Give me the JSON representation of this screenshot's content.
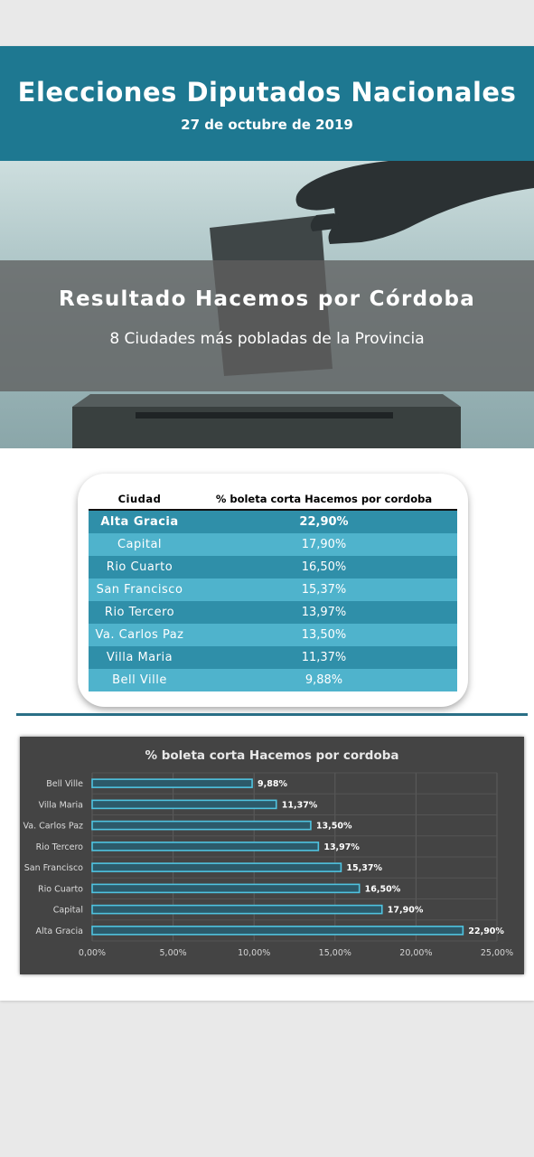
{
  "header": {
    "title": "Elecciones Diputados Nacionales",
    "date": "27 de octubre de 2019"
  },
  "banner": {
    "title": "Resultado Hacemos por Córdoba",
    "subtitle": "8 Ciudades más pobladas de la Provincia"
  },
  "table": {
    "columns": [
      "Ciudad",
      "% boleta corta Hacemos por cordoba"
    ],
    "rows": [
      {
        "city": "Alta Gracia",
        "value": "22,90%"
      },
      {
        "city": "Capital",
        "value": "17,90%"
      },
      {
        "city": "Rio Cuarto",
        "value": "16,50%"
      },
      {
        "city": "San Francisco",
        "value": "15,37%"
      },
      {
        "city": "Rio Tercero",
        "value": "13,97%"
      },
      {
        "city": "Va. Carlos Paz",
        "value": "13,50%"
      },
      {
        "city": "Villa Maria",
        "value": "11,37%"
      },
      {
        "city": "Bell Ville",
        "value": "9,88%"
      }
    ]
  },
  "colors": {
    "header": "#1e7891",
    "row_dark": "#2f8fa9",
    "row_light": "#4fb3cc",
    "chart_bg": "#444444",
    "bar": "#4fc3e0"
  },
  "chart_data": {
    "type": "bar",
    "orientation": "horizontal",
    "title": "% boleta corta Hacemos por cordoba",
    "categories": [
      "Bell Ville",
      "Villa Maria",
      "Va. Carlos Paz",
      "Rio Tercero",
      "San Francisco",
      "Rio Cuarto",
      "Capital",
      "Alta Gracia"
    ],
    "values": [
      9.88,
      11.37,
      13.5,
      13.97,
      15.37,
      16.5,
      17.9,
      22.9
    ],
    "value_labels": [
      "9,88%",
      "11,37%",
      "13,50%",
      "13,97%",
      "15,37%",
      "16,50%",
      "17,90%",
      "22,90%"
    ],
    "xlim": [
      0,
      25
    ],
    "xticks": [
      0,
      5,
      10,
      15,
      20,
      25
    ],
    "xtick_labels": [
      "0,00%",
      "5,00%",
      "10,00%",
      "15,00%",
      "20,00%",
      "25,00%"
    ],
    "grid": true
  }
}
